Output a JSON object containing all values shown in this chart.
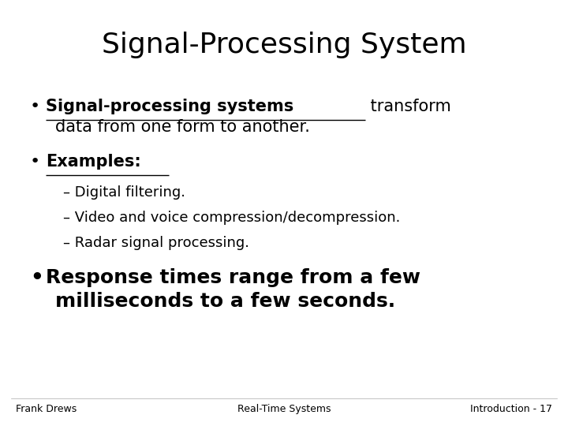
{
  "title": "Signal-Processing System",
  "title_fontsize": 26,
  "background_color": "#ffffff",
  "text_color": "#000000",
  "bullet1_bold_underline": "Signal-processing systems",
  "bullet1_normal": " transform",
  "bullet1_line2": "data from one form to another.",
  "bullet2_bold_underline": "Examples:",
  "sub_bullets": [
    "– Digital filtering.",
    "– Video and voice compression/decompression.",
    "– Radar signal processing."
  ],
  "bullet3_line1": "Response times range from a few",
  "bullet3_line2": "milliseconds to a few seconds.",
  "bullet3_fontsize": 18,
  "bullet1_fontsize": 15,
  "bullet2_fontsize": 15,
  "sub_bullet_fontsize": 13,
  "footer_left": "Frank Drews",
  "footer_center": "Real-Time Systems",
  "footer_right": "Introduction - 17",
  "footer_fontsize": 9,
  "bullet_dot_fontsize": 16,
  "bullet3_dot_fontsize": 19
}
